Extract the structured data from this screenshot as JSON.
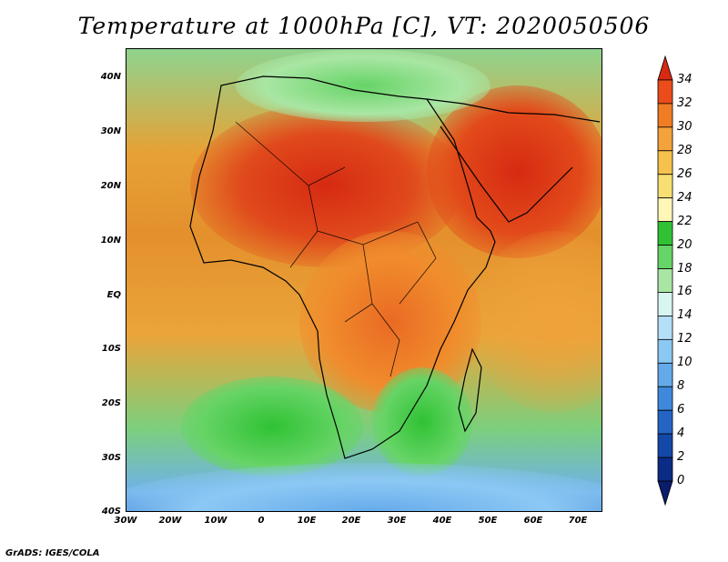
{
  "title": "Temperature at 1000hPa [C], VT: 2020050506",
  "credit": "GrADS: IGES/COLA",
  "lat_labels": [
    "40N",
    "30N",
    "20N",
    "10N",
    "EQ",
    "10S",
    "20S",
    "30S",
    "40S"
  ],
  "lon_labels": [
    "30W",
    "20W",
    "10W",
    "0",
    "10E",
    "20E",
    "30E",
    "40E",
    "50E",
    "60E",
    "70E"
  ],
  "colorbar": {
    "labels": [
      "34",
      "32",
      "30",
      "28",
      "26",
      "24",
      "22",
      "20",
      "18",
      "16",
      "14",
      "12",
      "10",
      "8",
      "6",
      "4",
      "2",
      "0"
    ],
    "colors": [
      "#d62a12",
      "#ea4d1b",
      "#f07c23",
      "#f4a23c",
      "#f6c24e",
      "#f8df74",
      "#fff6b8",
      "#30c234",
      "#66d466",
      "#a9e6a4",
      "#d9f5f2",
      "#b3dff8",
      "#8cc8f4",
      "#64aaea",
      "#3f88dc",
      "#2464c4",
      "#1448a8",
      "#0b2c86",
      "#0a1c6c"
    ]
  }
}
